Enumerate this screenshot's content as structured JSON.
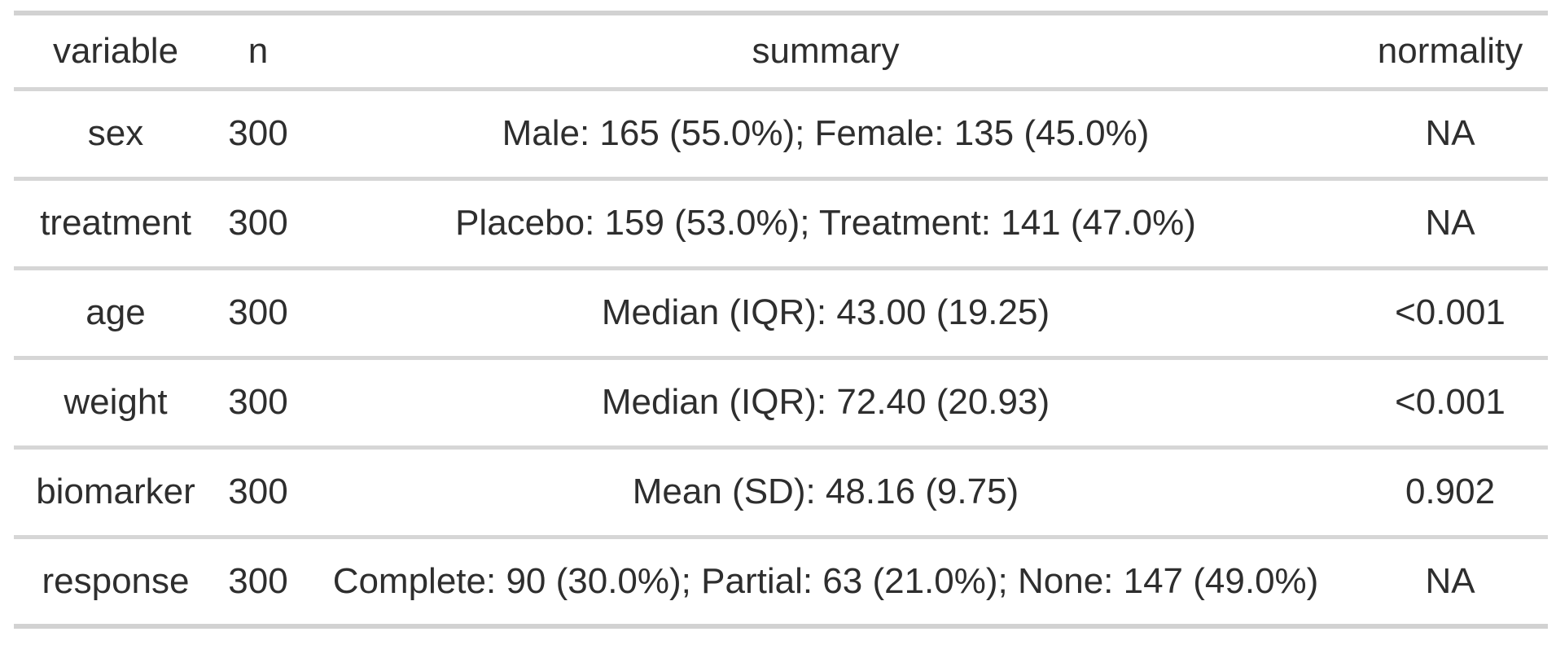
{
  "chart_data": {
    "type": "table",
    "columns": [
      "variable",
      "n",
      "summary",
      "normality"
    ],
    "rows": [
      [
        "sex",
        "300",
        "Male: 165 (55.0%); Female: 135 (45.0%)",
        "NA"
      ],
      [
        "treatment",
        "300",
        "Placebo: 159 (53.0%); Treatment: 141 (47.0%)",
        "NA"
      ],
      [
        "age",
        "300",
        "Median (IQR): 43.00 (19.25)",
        "<0.001"
      ],
      [
        "weight",
        "300",
        "Median (IQR): 72.40 (20.93)",
        "<0.001"
      ],
      [
        "biomarker",
        "300",
        "Mean (SD): 48.16 (9.75)",
        "0.902"
      ],
      [
        "response",
        "300",
        "Complete: 90 (30.0%); Partial: 63 (21.0%); None: 147 (49.0%)",
        "NA"
      ]
    ],
    "layout": {
      "alignment": "center",
      "grid": "horizontal-rules-only"
    },
    "colors": {
      "text": "#2e2e2e",
      "rule": "#d6d6d6",
      "outer_rule": "#d2d2d2",
      "background": "#ffffff"
    }
  }
}
